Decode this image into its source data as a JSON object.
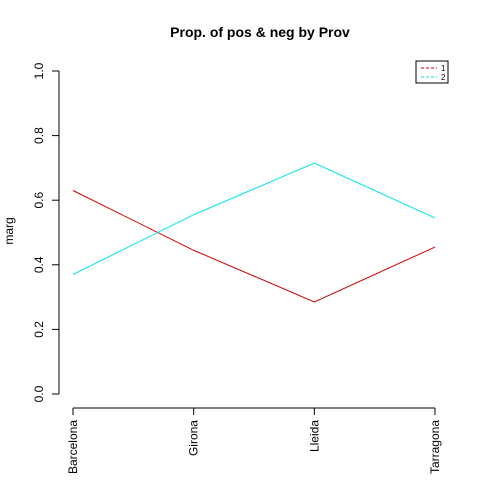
{
  "chart_data": {
    "type": "line",
    "title": "Prop. of pos & neg by Prov",
    "xlabel": "",
    "ylabel": "marg",
    "categories": [
      "Barcelona",
      "Girona",
      "Lleida",
      "Tarragona"
    ],
    "ylim": [
      0,
      1
    ],
    "yticks": [
      "0.0",
      "0.2",
      "0.4",
      "0.6",
      "0.8",
      "1.0"
    ],
    "grid": false,
    "legend_position": "top-right",
    "series": [
      {
        "name": "1",
        "color": "#cc0000",
        "values": [
          0.63,
          0.445,
          0.285,
          0.455
        ]
      },
      {
        "name": "2",
        "color": "#00e5ee",
        "values": [
          0.37,
          0.555,
          0.715,
          0.545
        ]
      }
    ]
  }
}
